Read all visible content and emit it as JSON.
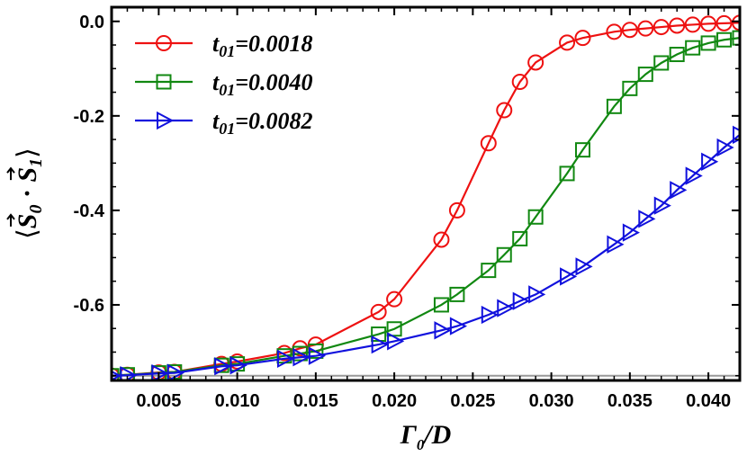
{
  "chart_data": {
    "type": "line",
    "title": "",
    "xlabel": "Γ0/D",
    "ylabel": "⟨S0 · S1⟩",
    "xlabel_parts": {
      "main": "Γ",
      "sub": "0",
      "rest": "/D"
    },
    "ylabel_parts": {
      "open": "⟨",
      "s0": "S",
      "s0_sub": "0",
      "dot": " · ",
      "s1": "S",
      "s1_sub": "1",
      "close": "⟩"
    },
    "xlim": [
      0.002,
      0.042
    ],
    "ylim": [
      -0.76,
      0.03
    ],
    "x_ticks": [
      0.005,
      0.01,
      0.015,
      0.02,
      0.025,
      0.03,
      0.035,
      0.04
    ],
    "x_tick_labels": [
      "0.005",
      "0.010",
      "0.015",
      "0.020",
      "0.025",
      "0.030",
      "0.035",
      "0.040"
    ],
    "y_ticks": [
      0.0,
      -0.2,
      -0.4,
      -0.6
    ],
    "y_tick_labels": [
      "0.0",
      "-0.2",
      "-0.4",
      "-0.6"
    ],
    "reference_line": {
      "y": -0.75,
      "color": "#999999"
    },
    "legend_position": "top-left",
    "series": [
      {
        "name": "t01=0.0018",
        "label_main": "t",
        "label_sub": "01",
        "label_value": "=0.0018",
        "color": "#ee1111",
        "marker": "circle",
        "x": [
          0.002,
          0.003,
          0.005,
          0.006,
          0.009,
          0.01,
          0.013,
          0.014,
          0.015,
          0.019,
          0.02,
          0.023,
          0.024,
          0.026,
          0.027,
          0.028,
          0.029,
          0.031,
          0.032,
          0.034,
          0.035,
          0.036,
          0.037,
          0.038,
          0.039,
          0.04,
          0.041,
          0.042
        ],
        "y": [
          -0.75,
          -0.748,
          -0.743,
          -0.742,
          -0.725,
          -0.72,
          -0.702,
          -0.692,
          -0.684,
          -0.615,
          -0.588,
          -0.462,
          -0.4,
          -0.258,
          -0.188,
          -0.128,
          -0.087,
          -0.045,
          -0.035,
          -0.022,
          -0.018,
          -0.015,
          -0.012,
          -0.009,
          -0.007,
          -0.005,
          -0.004,
          -0.003
        ]
      },
      {
        "name": "t01=0.0040",
        "label_main": "t",
        "label_sub": "01",
        "label_value": "=0.0040",
        "color": "#118811",
        "marker": "square",
        "x": [
          0.002,
          0.003,
          0.005,
          0.006,
          0.009,
          0.01,
          0.013,
          0.014,
          0.015,
          0.019,
          0.02,
          0.023,
          0.024,
          0.026,
          0.027,
          0.028,
          0.029,
          0.031,
          0.032,
          0.034,
          0.035,
          0.036,
          0.037,
          0.038,
          0.039,
          0.04,
          0.041,
          0.042
        ],
        "y": [
          -0.75,
          -0.748,
          -0.744,
          -0.742,
          -0.728,
          -0.725,
          -0.708,
          -0.703,
          -0.698,
          -0.662,
          -0.651,
          -0.6,
          -0.578,
          -0.527,
          -0.494,
          -0.46,
          -0.414,
          -0.322,
          -0.272,
          -0.18,
          -0.142,
          -0.112,
          -0.088,
          -0.07,
          -0.056,
          -0.046,
          -0.039,
          -0.035
        ]
      },
      {
        "name": "t01=0.0082",
        "label_main": "t",
        "label_sub": "01",
        "label_value": "=0.0082",
        "color": "#1111dd",
        "marker": "triangle-right",
        "x": [
          0.002,
          0.003,
          0.005,
          0.006,
          0.009,
          0.01,
          0.013,
          0.014,
          0.015,
          0.019,
          0.02,
          0.023,
          0.024,
          0.026,
          0.027,
          0.028,
          0.029,
          0.031,
          0.032,
          0.034,
          0.035,
          0.036,
          0.037,
          0.038,
          0.039,
          0.04,
          0.041,
          0.042
        ],
        "y": [
          -0.75,
          -0.749,
          -0.745,
          -0.744,
          -0.73,
          -0.728,
          -0.714,
          -0.711,
          -0.708,
          -0.684,
          -0.677,
          -0.654,
          -0.645,
          -0.621,
          -0.607,
          -0.592,
          -0.578,
          -0.54,
          -0.519,
          -0.472,
          -0.447,
          -0.418,
          -0.39,
          -0.357,
          -0.327,
          -0.297,
          -0.267,
          -0.24
        ]
      }
    ]
  }
}
